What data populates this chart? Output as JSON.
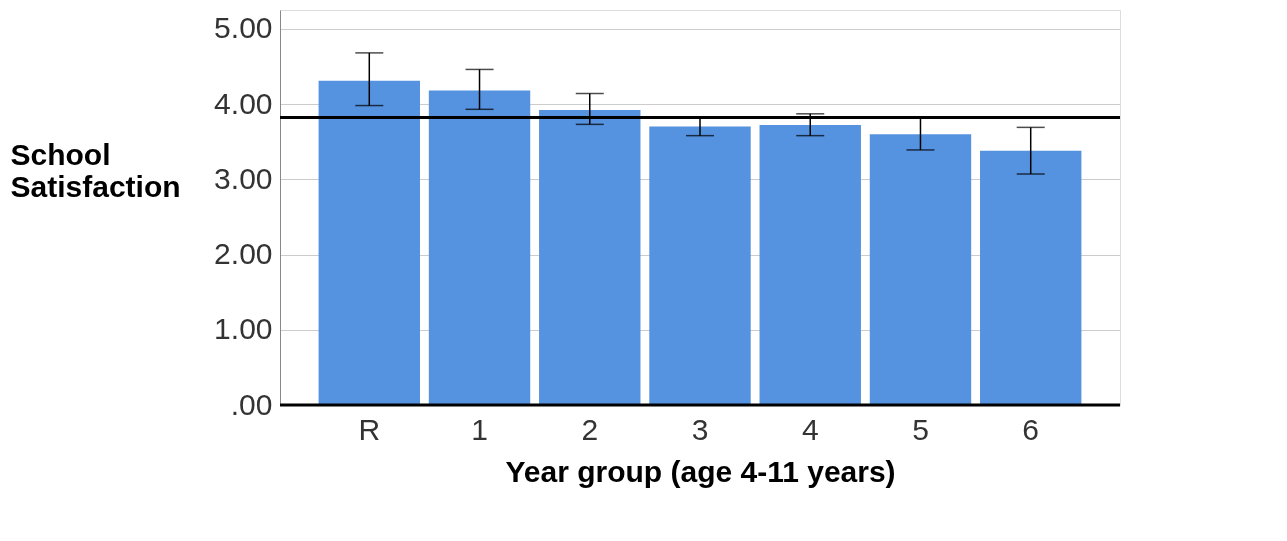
{
  "chart_data": {
    "type": "bar",
    "xlabel": "Year group (age 4-11 years)",
    "ylabel": "School Satisfaction",
    "categories": [
      "R",
      "1",
      "2",
      "3",
      "4",
      "5",
      "6"
    ],
    "values": [
      4.31,
      4.18,
      3.92,
      3.7,
      3.72,
      3.6,
      3.38
    ],
    "errors": [
      [
        3.98,
        4.68
      ],
      [
        3.93,
        4.46
      ],
      [
        3.73,
        4.14
      ],
      [
        3.58,
        3.82
      ],
      [
        3.58,
        3.87
      ],
      [
        3.39,
        3.82
      ],
      [
        3.07,
        3.69
      ]
    ],
    "color": "#5592e0",
    "ylim": [
      0,
      5.25
    ],
    "yticks": [
      {
        "value": 0,
        "label": ".00"
      },
      {
        "value": 1,
        "label": "1.00"
      },
      {
        "value": 2,
        "label": "2.00"
      },
      {
        "value": 3,
        "label": "3.00"
      },
      {
        "value": 4,
        "label": "4.00"
      },
      {
        "value": 5,
        "label": "5.00"
      }
    ],
    "ref_lines": [
      {
        "axis": "y",
        "value": 3.82,
        "color": "#000000"
      }
    ],
    "grid": "y"
  }
}
